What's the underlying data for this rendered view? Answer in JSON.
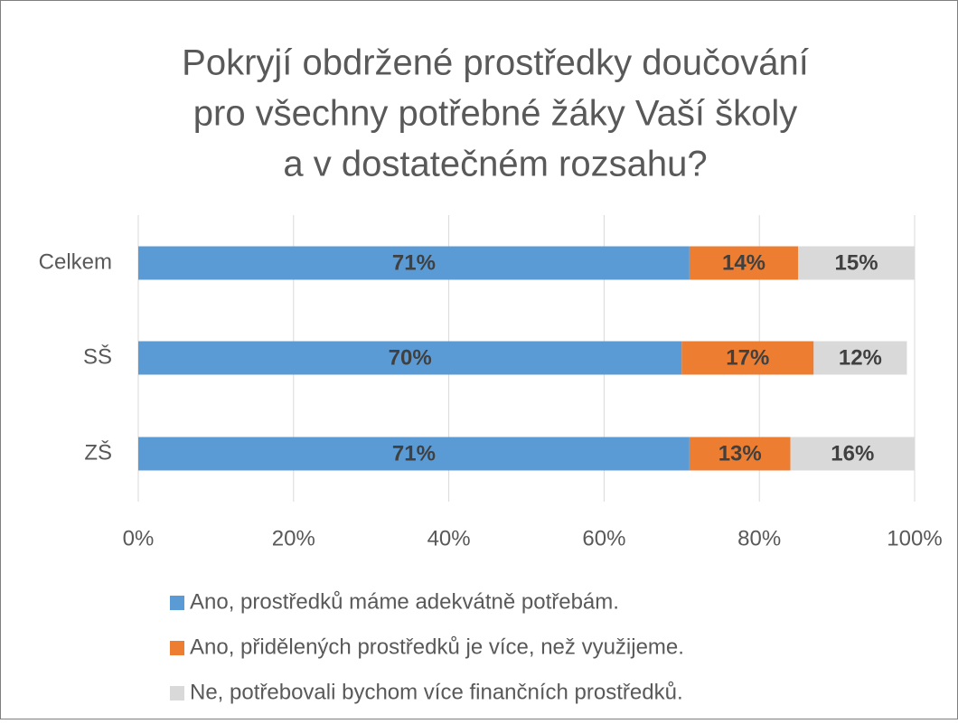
{
  "chart_data": {
    "type": "stacked_bar_horizontal",
    "title": [
      "Pokryjí obdržené prostředky doučování",
      "pro všechny potřebné žáky Vaší školy",
      "a v dostatečném rozsahu?"
    ],
    "categories": [
      "Celkem",
      "SŠ",
      "ZŠ"
    ],
    "series": [
      {
        "name": "Ano, prostředků máme adekvátně potřebám.",
        "color": "#5b9bd5",
        "values": [
          71,
          70,
          71
        ],
        "value_labels": [
          "71%",
          "70%",
          "71%"
        ]
      },
      {
        "name": "Ano, přidělených prostředků je více, než využijeme.",
        "color": "#ed7d31",
        "values": [
          14,
          17,
          13
        ],
        "value_labels": [
          "14%",
          "17%",
          "13%"
        ]
      },
      {
        "name": "Ne, potřebovali bychom více finančních prostředků.",
        "color": "#d9d9d9",
        "values": [
          15,
          12,
          16
        ],
        "value_labels": [
          "15%",
          "12%",
          "16%"
        ]
      }
    ],
    "xlim": [
      0,
      100
    ],
    "xticks": [
      {
        "value": 0,
        "label": "0%"
      },
      {
        "value": 20,
        "label": "20%"
      },
      {
        "value": 40,
        "label": "40%"
      },
      {
        "value": 60,
        "label": "60%"
      },
      {
        "value": 80,
        "label": "80%"
      },
      {
        "value": 100,
        "label": "100%"
      }
    ],
    "grid": true,
    "legend": "bottom"
  }
}
